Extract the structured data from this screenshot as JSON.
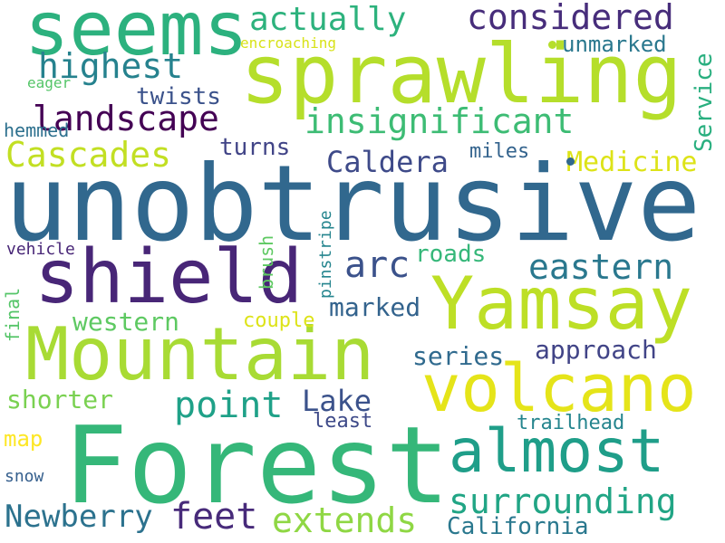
{
  "words": [
    {
      "id": "unobtrusive",
      "text": "unobtrusive",
      "color": "#31688e"
    },
    {
      "id": "forest",
      "text": "Forest",
      "color": "#35b779"
    },
    {
      "id": "sprawling",
      "text": "sprawling",
      "color": "#b5de2b"
    },
    {
      "id": "seems",
      "text": "seems",
      "color": "#2cb17e"
    },
    {
      "id": "shield",
      "text": "shield",
      "color": "#482677"
    },
    {
      "id": "mountain",
      "text": "Mountain",
      "color": "#a8db34"
    },
    {
      "id": "yamsay",
      "text": "Yamsay",
      "color": "#bddf26"
    },
    {
      "id": "volcano",
      "text": "volcano",
      "color": "#e5e419"
    },
    {
      "id": "almost",
      "text": "almost",
      "color": "#1f9e89"
    },
    {
      "id": "insignificant",
      "text": "insignificant",
      "color": "#3dbc74"
    },
    {
      "id": "landscape",
      "text": "landscape",
      "color": "#440154"
    },
    {
      "id": "considered",
      "text": "considered",
      "color": "#472d7b"
    },
    {
      "id": "actually",
      "text": "actually",
      "color": "#2db27d"
    },
    {
      "id": "highest",
      "text": "highest",
      "color": "#26828e"
    },
    {
      "id": "cascades",
      "text": "Cascades",
      "color": "#c2df23"
    },
    {
      "id": "caldera",
      "text": "Caldera",
      "color": "#3e4a89"
    },
    {
      "id": "medicine",
      "text": "Medicine",
      "color": "#dde318"
    },
    {
      "id": "eastern",
      "text": "eastern",
      "color": "#2a788e"
    },
    {
      "id": "arc",
      "text": "arc",
      "color": "#3b528b"
    },
    {
      "id": "surrounding",
      "text": "surrounding",
      "color": "#21a585"
    },
    {
      "id": "extends",
      "text": "extends",
      "color": "#8fd744"
    },
    {
      "id": "feet",
      "text": "feet",
      "color": "#472a7a"
    },
    {
      "id": "newberry",
      "text": "Newberry",
      "color": "#2c728e"
    },
    {
      "id": "point",
      "text": "point",
      "color": "#1fa188"
    },
    {
      "id": "lake",
      "text": "Lake",
      "color": "#3b528b"
    },
    {
      "id": "california",
      "text": "California",
      "color": "#2a788e"
    },
    {
      "id": "approach",
      "text": "approach",
      "color": "#414487"
    },
    {
      "id": "series",
      "text": "series",
      "color": "#306a8e"
    },
    {
      "id": "marked",
      "text": "marked",
      "color": "#33638d"
    },
    {
      "id": "western",
      "text": "western",
      "color": "#5ec962"
    },
    {
      "id": "shorter",
      "text": "shorter",
      "color": "#7ad151"
    },
    {
      "id": "twists",
      "text": "twists",
      "color": "#3b528b"
    },
    {
      "id": "turns",
      "text": "turns",
      "color": "#414487"
    },
    {
      "id": "unmarked",
      "text": "unmarked",
      "color": "#2a788e"
    },
    {
      "id": "service",
      "text": "Service",
      "color": "#29af7f"
    },
    {
      "id": "miles",
      "text": "miles",
      "color": "#33638d"
    },
    {
      "id": "roads",
      "text": "roads",
      "color": "#35b779"
    },
    {
      "id": "couple",
      "text": "couple",
      "color": "#dde318"
    },
    {
      "id": "least",
      "text": "least",
      "color": "#3e4a89"
    },
    {
      "id": "trailhead",
      "text": "trailhead",
      "color": "#25858e"
    },
    {
      "id": "map",
      "text": "map",
      "color": "#fde725"
    },
    {
      "id": "snow",
      "text": "snow",
      "color": "#355f8d"
    },
    {
      "id": "vehicle",
      "text": "vehicle",
      "color": "#482677"
    },
    {
      "id": "eager",
      "text": "eager",
      "color": "#54c568"
    },
    {
      "id": "encroaching",
      "text": "encroaching",
      "color": "#d8e219"
    },
    {
      "id": "hemmed",
      "text": "hemmed",
      "color": "#2d708e"
    },
    {
      "id": "final",
      "text": "final",
      "color": "#54c568"
    },
    {
      "id": "brush",
      "text": "brush",
      "color": "#5ec962"
    },
    {
      "id": "pinstripe",
      "text": "pinstripe",
      "color": "#25858e"
    }
  ],
  "dots": [
    {
      "id": "dot-yellow",
      "color": "#b5de2b"
    },
    {
      "id": "dot-blue",
      "color": "#31688e"
    }
  ]
}
